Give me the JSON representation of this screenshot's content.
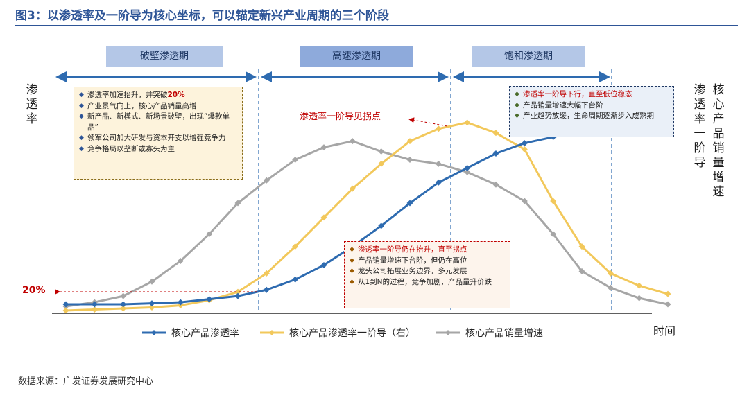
{
  "title": "图3：以渗透率及一阶导为核心坐标，可以锚定新兴产业周期的三个阶段",
  "phases": [
    "破壁渗透期",
    "高速渗透期",
    "饱和渗透期"
  ],
  "left_axis_label": "渗透率",
  "right_axis_label": "核心产品销量增速",
  "right_axis_label_chars": [
    "核",
    "心",
    "产",
    "品",
    "销",
    "量",
    "增",
    "速"
  ],
  "left_axis_label_chars": [
    "渗",
    "透",
    "率"
  ],
  "x_axis_label": "时间",
  "y_marker_label": "20%",
  "inflection_label": "渗透率一阶导见拐点",
  "notes": {
    "phase1": [
      {
        "text": "渗透率加速抬升，并突破",
        "emph": "20%"
      },
      {
        "text": "产业景气向上，核心产品销量高增"
      },
      {
        "text": "新产品、新模式、新场景破壁，出现“爆款单品”"
      },
      {
        "text": "领军公司加大研发与资本开支以增强竞争力"
      },
      {
        "text": "竞争格局以垄断或寡头为主"
      }
    ],
    "phase2": [
      {
        "text": "渗透率一阶导仍在抬升，直至拐点",
        "red": true
      },
      {
        "text": "产品销量增速下台阶，但仍在高位"
      },
      {
        "text": "龙头公司拓展业务边界，多元发展"
      },
      {
        "text": "从1到N的过程，竞争加剧，产品量升价跌"
      }
    ],
    "phase3": [
      {
        "text": "渗透率一阶导下行，直至低位稳态",
        "red": true
      },
      {
        "text": "产品销量增速大幅下台阶"
      },
      {
        "text": "产业趋势放缓，生命周期逐渐步入成熟期"
      }
    ]
  },
  "source": "数据来源：广发证券发展研究中心",
  "colors": {
    "blue": "#2e6bb0",
    "yellow": "#f2c85b",
    "gray": "#a6a6a6",
    "title": "#2e5597",
    "phase_light": "#b4c7e7",
    "phase_mid": "#8eaadb"
  },
  "chart_data": {
    "type": "line",
    "x": [
      1,
      2,
      3,
      4,
      5,
      6,
      7,
      8,
      9,
      10,
      11,
      12,
      13,
      14,
      15,
      16,
      17,
      18,
      19,
      20,
      21,
      22
    ],
    "series": [
      {
        "name": "核心产品渗透率",
        "color": "#2e6bb0",
        "values": [
          3,
          3,
          3,
          3.5,
          4,
          5.5,
          7,
          10,
          15,
          22,
          31,
          41,
          52,
          62,
          69,
          76,
          81,
          84,
          87,
          89,
          92,
          95
        ]
      },
      {
        "name": "核心产品渗透率一阶导（右）",
        "color": "#f2c85b",
        "values": [
          0,
          0.5,
          1,
          1.5,
          2.5,
          5,
          9,
          18,
          31,
          45,
          59,
          71,
          82,
          88,
          91,
          86,
          78,
          53,
          31,
          18,
          12,
          8
        ]
      },
      {
        "name": "核心产品销量增速",
        "color": "#a6a6a6",
        "values": [
          2,
          4,
          7,
          14,
          24,
          37,
          52,
          63,
          73,
          79,
          82,
          77,
          73,
          71,
          67,
          61,
          53,
          37,
          19,
          11,
          6,
          3
        ]
      }
    ],
    "xlabel": "时间",
    "ylabel": "渗透率",
    "y2label": "核心产品销量增速",
    "ylim": [
      0,
      100
    ],
    "legend": "bottom"
  }
}
